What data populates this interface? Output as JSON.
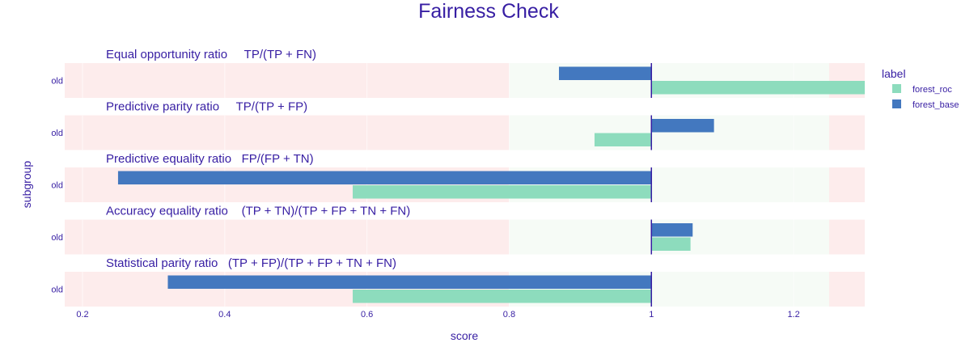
{
  "title": "Fairness Check",
  "chart_data": {
    "type": "bar",
    "orientation": "horizontal",
    "title": "Fairness Check",
    "xlabel": "score",
    "ylabel": "subgroup",
    "xlim": [
      0.175,
      1.3
    ],
    "xticks": [
      0.2,
      0.4,
      0.6,
      0.8,
      1,
      1.2
    ],
    "xtick_labels": [
      "0.2",
      "0.4",
      "0.6",
      "0.8",
      "1",
      "1.2"
    ],
    "base": 1,
    "fair_range": [
      0.8,
      1.25
    ],
    "legend": {
      "title": "label",
      "position": "top-right",
      "items": [
        {
          "name": "forest_roc",
          "color": "#8ddcbd"
        },
        {
          "name": "forest_base",
          "color": "#4378bf"
        }
      ]
    },
    "colors": {
      "forest_roc": "#8ddcbd",
      "forest_base": "#4378bf",
      "unfair_zone": "#fdecec",
      "fair_zone": "#f6fbf6",
      "reference_line": "#371ea3",
      "text": "#371ea3"
    },
    "panels": [
      {
        "title": "Equal opportunity ratio     TP/(TP + FN)",
        "category": "old",
        "series": [
          {
            "name": "forest_base",
            "value": 0.87
          },
          {
            "name": "forest_roc",
            "value": 1.3
          }
        ]
      },
      {
        "title": "Predictive parity ratio     TP/(TP + FP)",
        "category": "old",
        "series": [
          {
            "name": "forest_base",
            "value": 1.088
          },
          {
            "name": "forest_roc",
            "value": 0.92
          }
        ]
      },
      {
        "title": "Predictive equality ratio   FP/(FP + TN)",
        "category": "old",
        "series": [
          {
            "name": "forest_base",
            "value": 0.25
          },
          {
            "name": "forest_roc",
            "value": 0.58
          }
        ]
      },
      {
        "title": "Accuracy equality ratio    (TP + TN)/(TP + FP + TN + FN)",
        "category": "old",
        "series": [
          {
            "name": "forest_base",
            "value": 1.058
          },
          {
            "name": "forest_roc",
            "value": 1.055
          }
        ]
      },
      {
        "title": "Statistical parity ratio   (TP + FP)/(TP + FP + TN + FN)",
        "category": "old",
        "series": [
          {
            "name": "forest_base",
            "value": 0.32
          },
          {
            "name": "forest_roc",
            "value": 0.58
          }
        ]
      }
    ]
  }
}
